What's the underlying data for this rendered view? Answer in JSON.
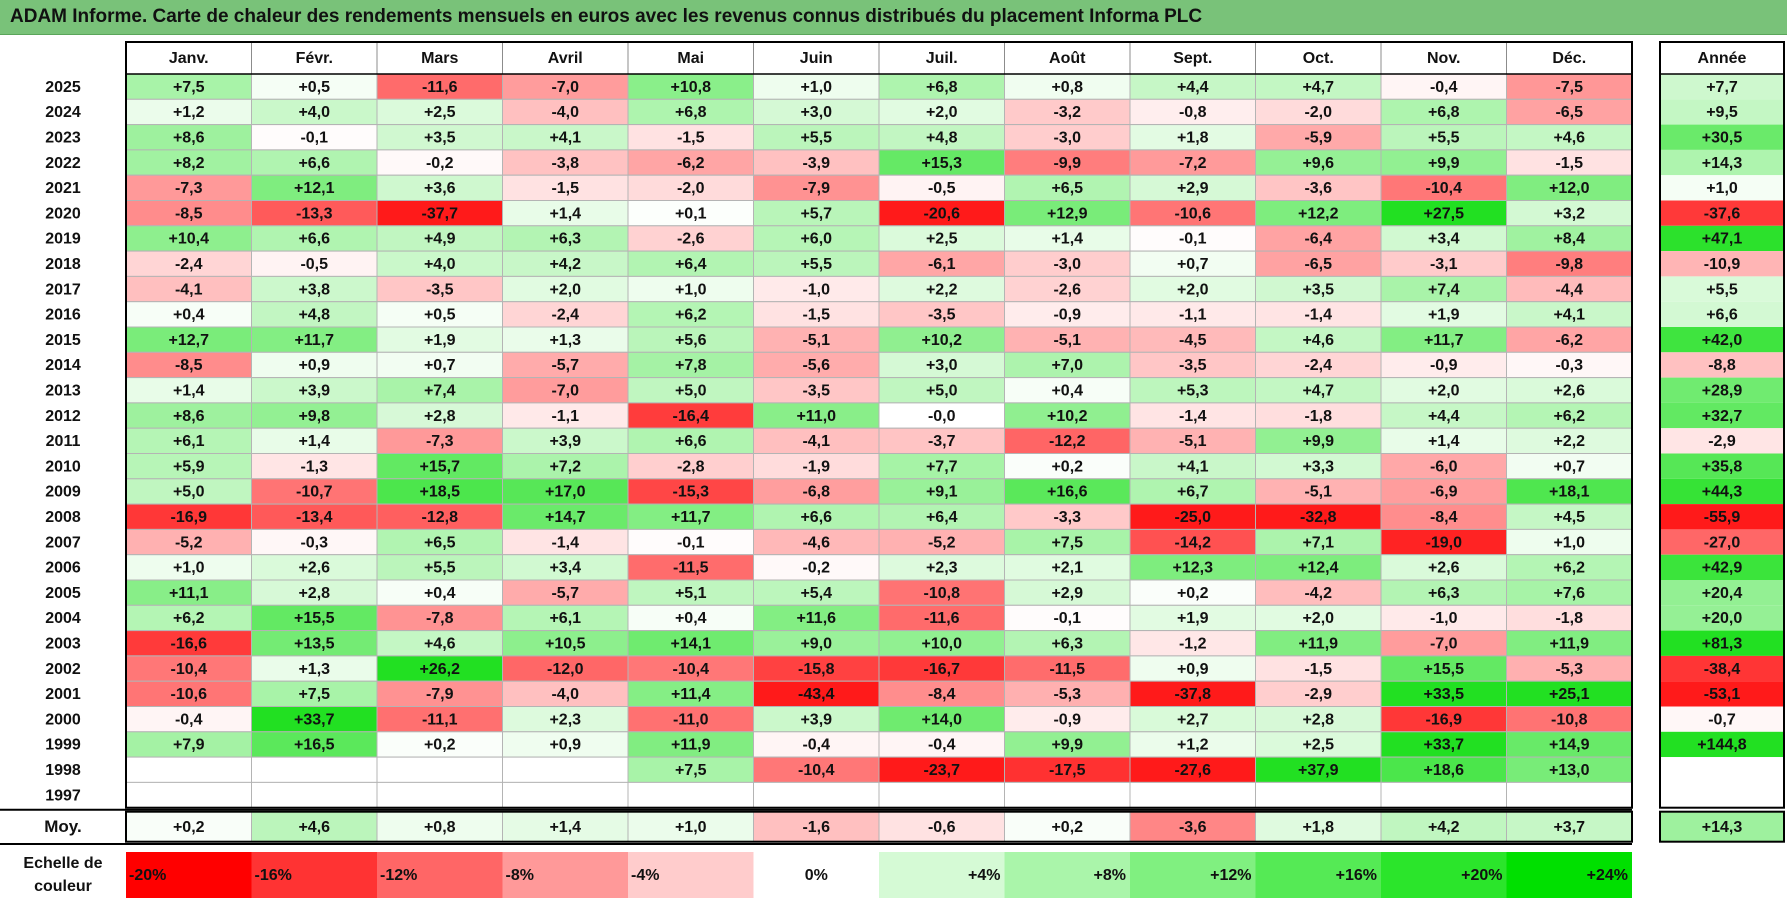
{
  "title": "ADAM Informe. Carte de chaleur des rendements mensuels en euros avec les revenus connus distribués du placement Informa PLC",
  "chart_data": {
    "type": "heatmap",
    "title": "ADAM Informe. Carte de chaleur des rendements mensuels en euros avec les revenus connus distribués du placement Informa PLC",
    "months": [
      "Janv.",
      "Févr.",
      "Mars",
      "Avril",
      "Mai",
      "Juin",
      "Juil.",
      "Août",
      "Sept.",
      "Oct.",
      "Nov.",
      "Déc."
    ],
    "year_header": "Année",
    "rows": [
      {
        "year": "2025",
        "values": [
          "+7,5",
          "+0,5",
          "-11,6",
          "-7,0",
          "+10,8",
          "+1,0",
          "+6,8",
          "+0,8",
          "+4,4",
          "+4,7",
          "-0,4",
          "-7,5"
        ],
        "annual": "+7,7"
      },
      {
        "year": "2024",
        "values": [
          "+1,2",
          "+4,0",
          "+2,5",
          "-4,0",
          "+6,8",
          "+3,0",
          "+2,0",
          "-3,2",
          "-0,8",
          "-2,0",
          "+6,8",
          "-6,5"
        ],
        "annual": "+9,5"
      },
      {
        "year": "2023",
        "values": [
          "+8,6",
          "-0,1",
          "+3,5",
          "+4,1",
          "-1,5",
          "+5,5",
          "+4,8",
          "-3,0",
          "+1,8",
          "-5,9",
          "+5,5",
          "+4,6"
        ],
        "annual": "+30,5"
      },
      {
        "year": "2022",
        "values": [
          "+8,2",
          "+6,6",
          "-0,2",
          "-3,8",
          "-6,2",
          "-3,9",
          "+15,3",
          "-9,9",
          "-7,2",
          "+9,6",
          "+9,9",
          "-1,5"
        ],
        "annual": "+14,3"
      },
      {
        "year": "2021",
        "values": [
          "-7,3",
          "+12,1",
          "+3,6",
          "-1,5",
          "-2,0",
          "-7,9",
          "-0,5",
          "+6,5",
          "+2,9",
          "-3,6",
          "-10,4",
          "+12,0"
        ],
        "annual": "+1,0"
      },
      {
        "year": "2020",
        "values": [
          "-8,5",
          "-13,3",
          "-37,7",
          "+1,4",
          "+0,1",
          "+5,7",
          "-20,6",
          "+12,9",
          "-10,6",
          "+12,2",
          "+27,5",
          "+3,2"
        ],
        "annual": "-37,6"
      },
      {
        "year": "2019",
        "values": [
          "+10,4",
          "+6,6",
          "+4,9",
          "+6,3",
          "-2,6",
          "+6,0",
          "+2,5",
          "+1,4",
          "-0,1",
          "-6,4",
          "+3,4",
          "+8,4"
        ],
        "annual": "+47,1"
      },
      {
        "year": "2018",
        "values": [
          "-2,4",
          "-0,5",
          "+4,0",
          "+4,2",
          "+6,4",
          "+5,5",
          "-6,1",
          "-3,0",
          "+0,7",
          "-6,5",
          "-3,1",
          "-9,8"
        ],
        "annual": "-10,9"
      },
      {
        "year": "2017",
        "values": [
          "-4,1",
          "+3,8",
          "-3,5",
          "+2,0",
          "+1,0",
          "-1,0",
          "+2,2",
          "-2,6",
          "+2,0",
          "+3,5",
          "+7,4",
          "-4,4"
        ],
        "annual": "+5,5"
      },
      {
        "year": "2016",
        "values": [
          "+0,4",
          "+4,8",
          "+0,5",
          "-2,4",
          "+6,2",
          "-1,5",
          "-3,5",
          "-0,9",
          "-1,1",
          "-1,4",
          "+1,9",
          "+4,1"
        ],
        "annual": "+6,6"
      },
      {
        "year": "2015",
        "values": [
          "+12,7",
          "+11,7",
          "+1,9",
          "+1,3",
          "+5,6",
          "-5,1",
          "+10,2",
          "-5,1",
          "-4,5",
          "+4,6",
          "+11,7",
          "-6,2"
        ],
        "annual": "+42,0"
      },
      {
        "year": "2014",
        "values": [
          "-8,5",
          "+0,9",
          "+0,7",
          "-5,7",
          "+7,8",
          "-5,6",
          "+3,0",
          "+7,0",
          "-3,5",
          "-2,4",
          "-0,9",
          "-0,3"
        ],
        "annual": "-8,8"
      },
      {
        "year": "2013",
        "values": [
          "+1,4",
          "+3,9",
          "+7,4",
          "-7,0",
          "+5,0",
          "-3,5",
          "+5,0",
          "+0,4",
          "+5,3",
          "+4,7",
          "+2,0",
          "+2,6"
        ],
        "annual": "+28,9"
      },
      {
        "year": "2012",
        "values": [
          "+8,6",
          "+9,8",
          "+2,8",
          "-1,1",
          "-16,4",
          "+11,0",
          "-0,0",
          "+10,2",
          "-1,4",
          "-1,8",
          "+4,4",
          "+6,2"
        ],
        "annual": "+32,7"
      },
      {
        "year": "2011",
        "values": [
          "+6,1",
          "+1,4",
          "-7,3",
          "+3,9",
          "+6,6",
          "-4,1",
          "-3,7",
          "-12,2",
          "-5,1",
          "+9,9",
          "+1,4",
          "+2,2"
        ],
        "annual": "-2,9"
      },
      {
        "year": "2010",
        "values": [
          "+5,9",
          "-1,3",
          "+15,7",
          "+7,2",
          "-2,8",
          "-1,9",
          "+7,7",
          "+0,2",
          "+4,1",
          "+3,3",
          "-6,0",
          "+0,7"
        ],
        "annual": "+35,8"
      },
      {
        "year": "2009",
        "values": [
          "+5,0",
          "-10,7",
          "+18,5",
          "+17,0",
          "-15,3",
          "-6,8",
          "+9,1",
          "+16,6",
          "+6,7",
          "-5,1",
          "-6,9",
          "+18,1"
        ],
        "annual": "+44,3"
      },
      {
        "year": "2008",
        "values": [
          "-16,9",
          "-13,4",
          "-12,8",
          "+14,7",
          "+11,7",
          "+6,6",
          "+6,4",
          "-3,3",
          "-25,0",
          "-32,8",
          "-8,4",
          "+4,5"
        ],
        "annual": "-55,9"
      },
      {
        "year": "2007",
        "values": [
          "-5,2",
          "-0,3",
          "+6,5",
          "-1,4",
          "-0,1",
          "-4,6",
          "-5,2",
          "+7,5",
          "-14,2",
          "+7,1",
          "-19,0",
          "+1,0"
        ],
        "annual": "-27,0"
      },
      {
        "year": "2006",
        "values": [
          "+1,0",
          "+2,6",
          "+5,5",
          "+3,4",
          "-11,5",
          "-0,2",
          "+2,3",
          "+2,1",
          "+12,3",
          "+12,4",
          "+2,6",
          "+6,2"
        ],
        "annual": "+42,9"
      },
      {
        "year": "2005",
        "values": [
          "+11,1",
          "+2,8",
          "+0,4",
          "-5,7",
          "+5,1",
          "+5,4",
          "-10,8",
          "+2,9",
          "+0,2",
          "-4,2",
          "+6,3",
          "+7,6"
        ],
        "annual": "+20,4"
      },
      {
        "year": "2004",
        "values": [
          "+6,2",
          "+15,5",
          "-7,8",
          "+6,1",
          "+0,4",
          "+11,6",
          "-11,6",
          "-0,1",
          "+1,9",
          "+2,0",
          "-1,0",
          "-1,8"
        ],
        "annual": "+20,0"
      },
      {
        "year": "2003",
        "values": [
          "-16,6",
          "+13,5",
          "+4,6",
          "+10,5",
          "+14,1",
          "+9,0",
          "+10,0",
          "+6,3",
          "-1,2",
          "+11,9",
          "-7,0",
          "+11,9"
        ],
        "annual": "+81,3"
      },
      {
        "year": "2002",
        "values": [
          "-10,4",
          "+1,3",
          "+26,2",
          "-12,0",
          "-10,4",
          "-15,8",
          "-16,7",
          "-11,5",
          "+0,9",
          "-1,5",
          "+15,5",
          "-5,3"
        ],
        "annual": "-38,4"
      },
      {
        "year": "2001",
        "values": [
          "-10,6",
          "+7,5",
          "-7,9",
          "-4,0",
          "+11,4",
          "-43,4",
          "-8,4",
          "-5,3",
          "-37,8",
          "-2,9",
          "+33,5",
          "+25,1"
        ],
        "annual": "-53,1"
      },
      {
        "year": "2000",
        "values": [
          "-0,4",
          "+33,7",
          "-11,1",
          "+2,3",
          "-11,0",
          "+3,9",
          "+14,0",
          "-0,9",
          "+2,7",
          "+2,8",
          "-16,9",
          "-10,8"
        ],
        "annual": "-0,7"
      },
      {
        "year": "1999",
        "values": [
          "+7,9",
          "+16,5",
          "+0,2",
          "+0,9",
          "+11,9",
          "-0,4",
          "-0,4",
          "+9,9",
          "+1,2",
          "+2,5",
          "+33,7",
          "+14,9"
        ],
        "annual": "+144,8"
      },
      {
        "year": "1998",
        "values": [
          "",
          "",
          "",
          "",
          "+7,5",
          "-10,4",
          "-23,7",
          "-17,5",
          "-27,6",
          "+37,9",
          "+18,6",
          "+13,0"
        ],
        "annual": ""
      },
      {
        "year": "1997",
        "values": [
          "",
          "",
          "",
          "",
          "",
          "",
          "",
          "",
          "",
          "",
          "",
          ""
        ],
        "annual": ""
      }
    ],
    "average": {
      "label": "Moy.",
      "values": [
        "+0,2",
        "+4,6",
        "+0,8",
        "+1,4",
        "+1,0",
        "-1,6",
        "-0,6",
        "+0,2",
        "-3,6",
        "+1,8",
        "+4,2",
        "+3,7"
      ],
      "annual": "+14,3"
    },
    "scale": {
      "label_line1": "Echelle de",
      "label_line2": "couleur",
      "steps": [
        {
          "label": "-20%",
          "value": -20
        },
        {
          "label": "-16%",
          "value": -16
        },
        {
          "label": "-12%",
          "value": -12
        },
        {
          "label": "-8%",
          "value": -8
        },
        {
          "label": "-4%",
          "value": -4
        },
        {
          "label": "0%",
          "value": 0
        },
        {
          "label": "+4%",
          "value": 4
        },
        {
          "label": "+8%",
          "value": 8
        },
        {
          "label": "+12%",
          "value": 12
        },
        {
          "label": "+16%",
          "value": 16
        },
        {
          "label": "+20%",
          "value": 20
        },
        {
          "label": "+24%",
          "value": 24
        }
      ]
    },
    "colors": {
      "title_bg": "#79c279",
      "neg_max": "#ff0000",
      "neutral": "#ffffff",
      "pos_max": "#00ee00",
      "grid": "#b4b4b4",
      "border": "#000000"
    }
  }
}
